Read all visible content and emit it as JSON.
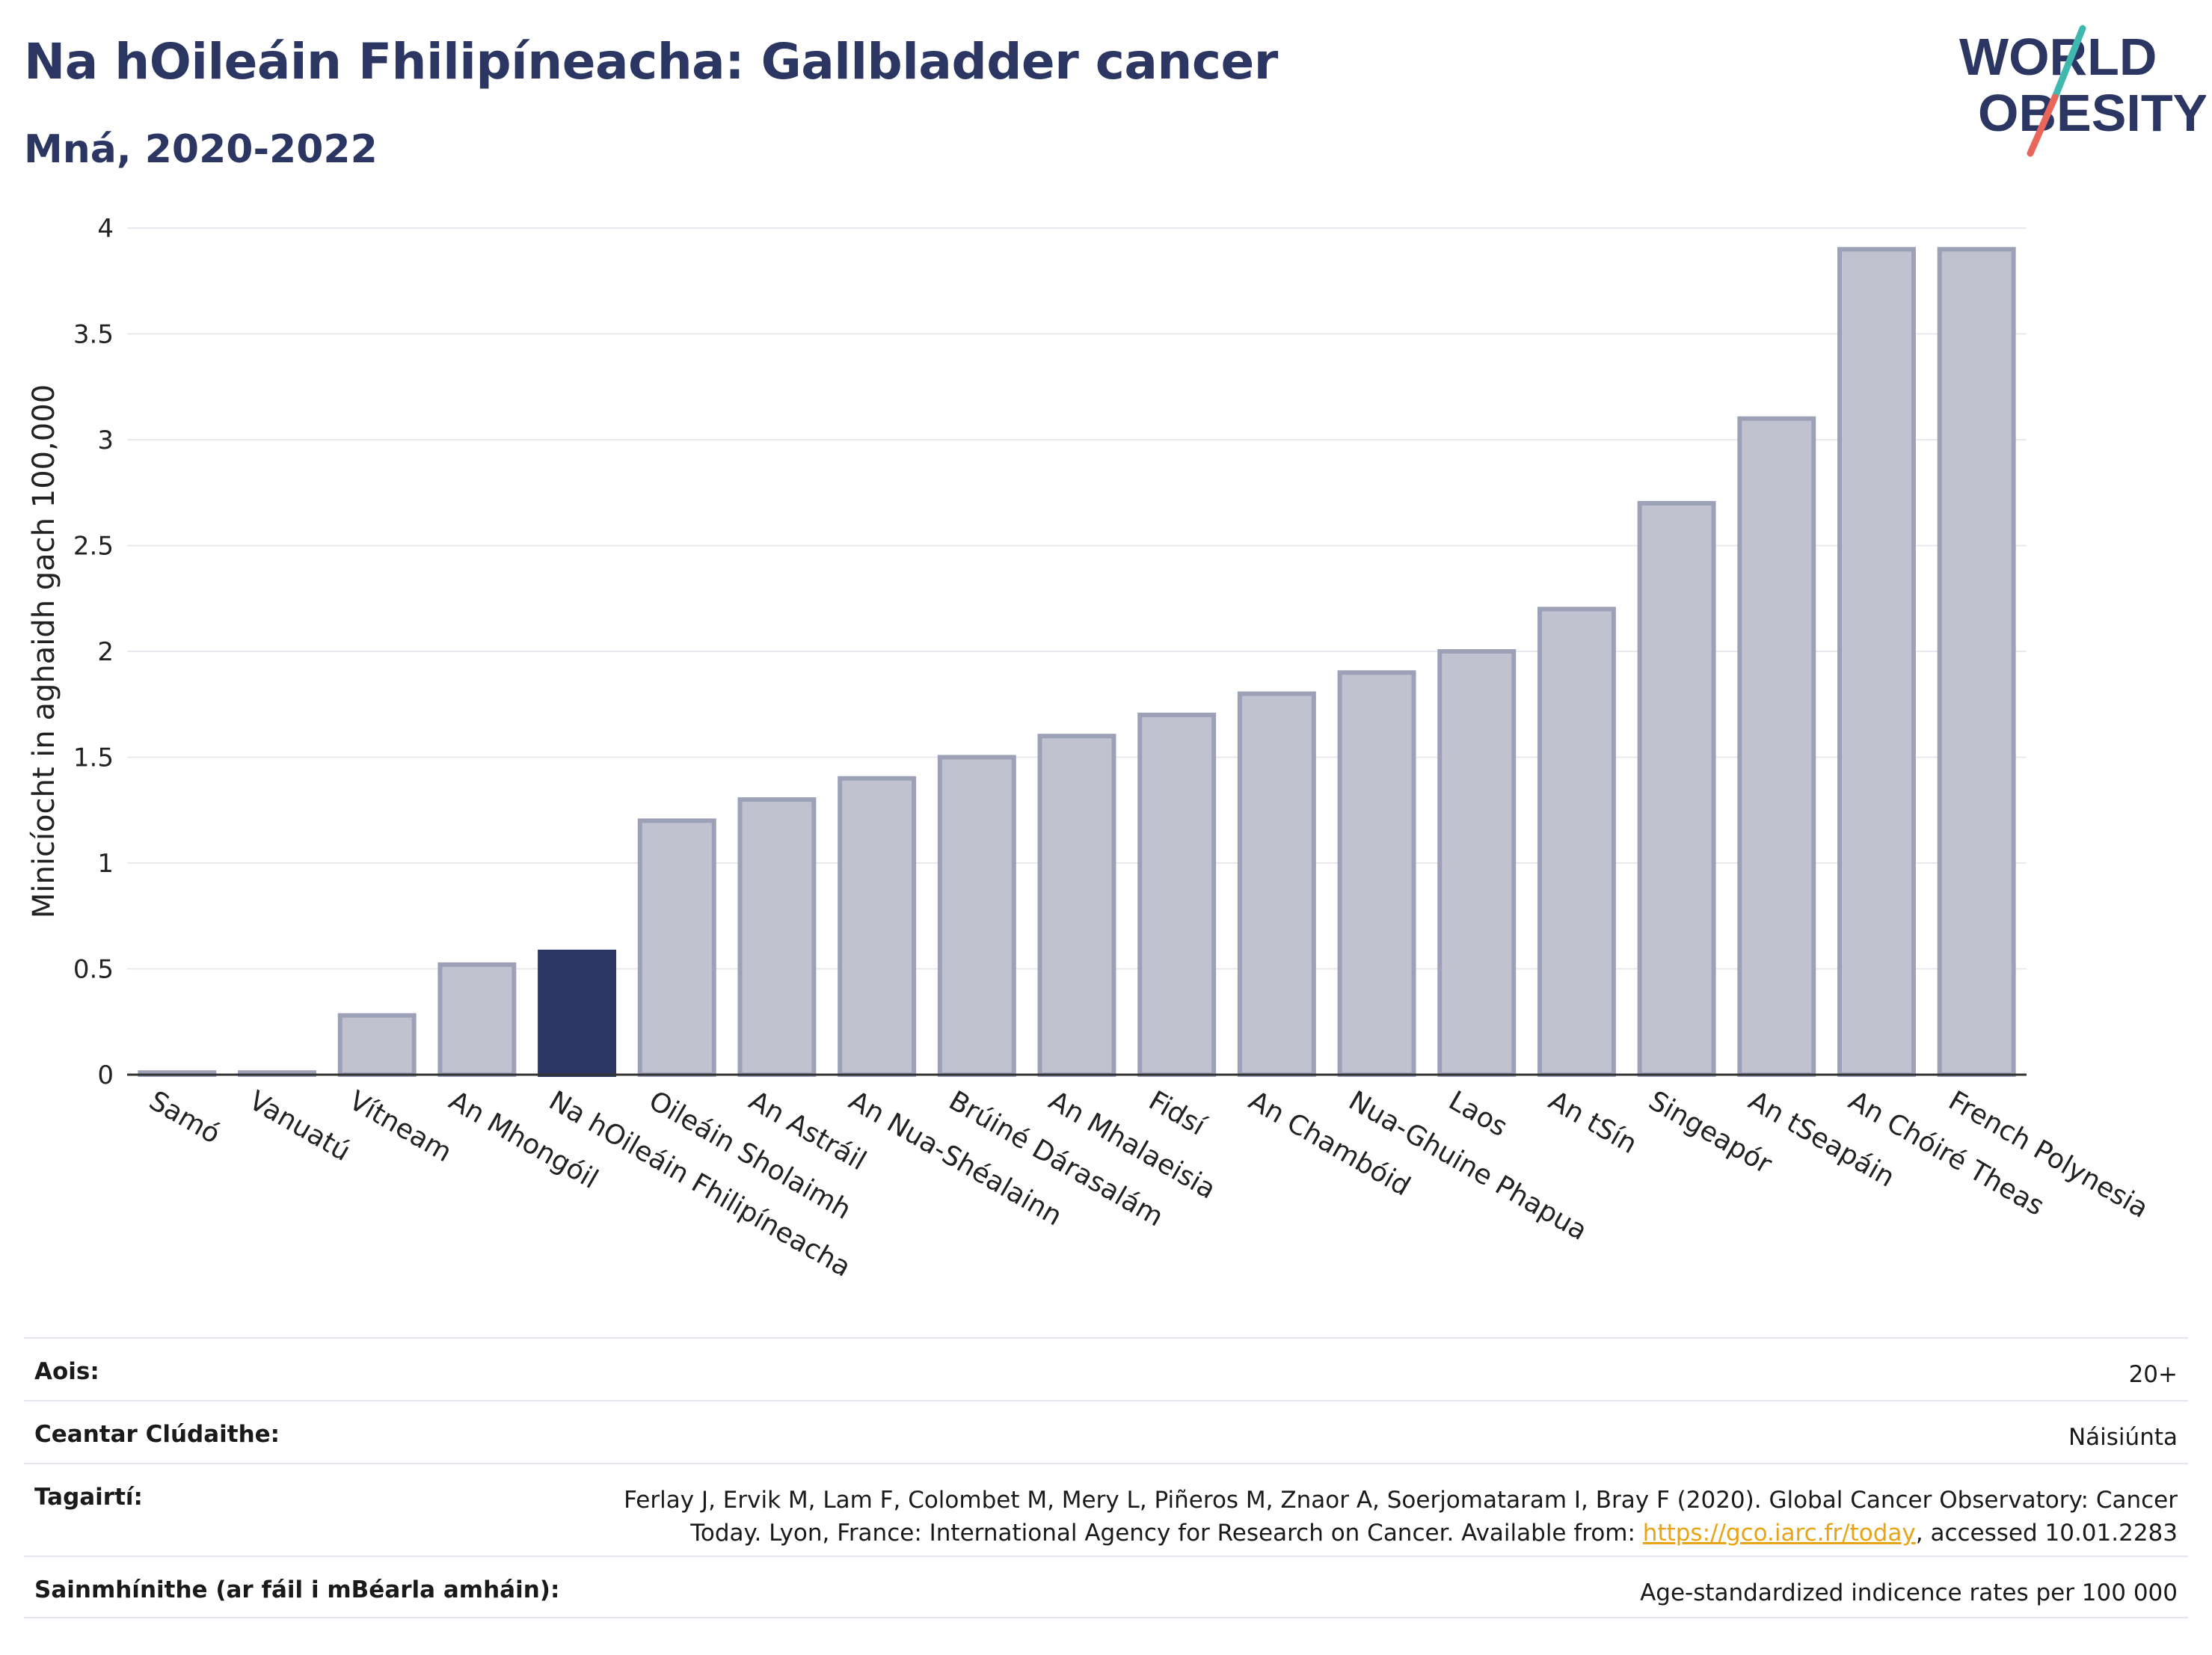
{
  "header": {
    "title": "Na hOileáin Fhilipíneacha: Gallbladder cancer",
    "subtitle": "Mná, 2020-2022"
  },
  "logo": {
    "line1": "WORLD",
    "line2": "OBESITY",
    "colors": {
      "navy": "#2b3762",
      "teal": "#3fb8b0",
      "coral": "#e8665a"
    }
  },
  "chart_data": {
    "type": "bar",
    "ylabel": "Minicíocht in aghaidh gach 100,000",
    "ylim": [
      0,
      4
    ],
    "yticks": [
      "0",
      "0.5",
      "1",
      "1.5",
      "2",
      "2.5",
      "3",
      "3.5",
      "4"
    ],
    "grid": true,
    "categories": [
      "Samó",
      "Vanuatú",
      "Vítneam",
      "An Mhongóil",
      "Na hOileáin Fhilipíneacha",
      "Oileáin Sholaimh",
      "An Astráil",
      "An Nua-Shéalainn",
      "Brúiné Dárasalám",
      "An Mhalaeisia",
      "Fidsí",
      "An Chambóid",
      "Nua-Ghuine Phapua",
      "Laos",
      "An tSín",
      "Singeapór",
      "An tSeapáin",
      "An Chóiré Theas",
      "French Polynesia"
    ],
    "values": [
      0.01,
      0.01,
      0.28,
      0.52,
      0.58,
      1.2,
      1.3,
      1.4,
      1.5,
      1.6,
      1.7,
      1.8,
      1.9,
      2.0,
      2.2,
      2.7,
      3.1,
      3.9,
      3.9
    ],
    "highlight": "Na hOileáin Fhilipíneacha",
    "colors": {
      "bar": "#c0c3cf",
      "bar_border": "#9ca1b8",
      "highlight": "#2b3762"
    }
  },
  "info": {
    "age_label": "Aois:",
    "age_value": "20+",
    "coverage_label": "Ceantar Clúdaithe:",
    "coverage_value": "Náisiúnta",
    "refs_label": "Tagairtí:",
    "refs_line1": "Ferlay J, Ervik M, Lam F, Colombet M, Mery L, Piñeros M, Znaor A, Soerjomataram I, Bray F (2020). Global Cancer Observatory: Cancer",
    "refs_line2_pre": "Today. Lyon, France: International Agency for Research on Cancer. Available from: ",
    "refs_link": "https://gco.iarc.fr/today",
    "refs_line2_post": ", accessed 10.01.2283",
    "defs_label": "Sainmhínithe (ar fáil i mBéarla amháin):",
    "defs_value": "Age-standardized indicence rates per 100 000"
  }
}
